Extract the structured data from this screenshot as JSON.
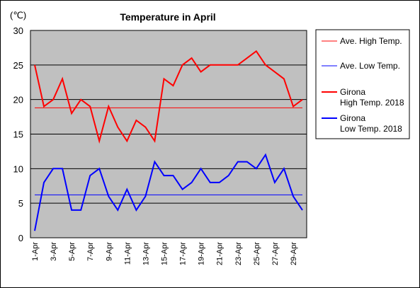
{
  "chart_data": {
    "type": "line",
    "title": "Temperature in April",
    "unit_label": "(℃)",
    "x": [
      "1-Apr",
      "2-Apr",
      "3-Apr",
      "4-Apr",
      "5-Apr",
      "6-Apr",
      "7-Apr",
      "8-Apr",
      "9-Apr",
      "10-Apr",
      "11-Apr",
      "12-Apr",
      "13-Apr",
      "14-Apr",
      "15-Apr",
      "16-Apr",
      "17-Apr",
      "18-Apr",
      "19-Apr",
      "20-Apr",
      "21-Apr",
      "22-Apr",
      "23-Apr",
      "24-Apr",
      "25-Apr",
      "26-Apr",
      "27-Apr",
      "28-Apr",
      "29-Apr",
      "30-Apr"
    ],
    "x_tick_labels": [
      "1-Apr",
      "3-Apr",
      "5-Apr",
      "7-Apr",
      "9-Apr",
      "11-Apr",
      "13-Apr",
      "15-Apr",
      "17-Apr",
      "19-Apr",
      "21-Apr",
      "23-Apr",
      "25-Apr",
      "27-Apr",
      "29-Apr"
    ],
    "ylim": [
      0,
      30
    ],
    "y_ticks": [
      0,
      5,
      10,
      15,
      20,
      25,
      30
    ],
    "grid": "horizontal",
    "legend_position": "right",
    "plot_background": "#c0c0c0",
    "series": [
      {
        "name": "Ave. High Temp.",
        "color": "#ff0000",
        "width": 1,
        "values": [
          18.8,
          18.8,
          18.8,
          18.8,
          18.8,
          18.8,
          18.8,
          18.8,
          18.8,
          18.8,
          18.8,
          18.8,
          18.8,
          18.8,
          18.8,
          18.8,
          18.8,
          18.8,
          18.8,
          18.8,
          18.8,
          18.8,
          18.8,
          18.8,
          18.8,
          18.8,
          18.8,
          18.8,
          18.8,
          18.8
        ]
      },
      {
        "name": "Ave. Low Temp.",
        "color": "#0000ff",
        "width": 1,
        "values": [
          6.2,
          6.2,
          6.2,
          6.2,
          6.2,
          6.2,
          6.2,
          6.2,
          6.2,
          6.2,
          6.2,
          6.2,
          6.2,
          6.2,
          6.2,
          6.2,
          6.2,
          6.2,
          6.2,
          6.2,
          6.2,
          6.2,
          6.2,
          6.2,
          6.2,
          6.2,
          6.2,
          6.2,
          6.2,
          6.2
        ]
      },
      {
        "name": "Girona\nHigh Temp. 2018",
        "legend_lines": [
          "Girona",
          "High Temp. 2018"
        ],
        "color": "#ff0000",
        "width": 2,
        "values": [
          25,
          19,
          20,
          23,
          18,
          20,
          19,
          14,
          19,
          16,
          14,
          17,
          16,
          14,
          23,
          22,
          25,
          26,
          24,
          25,
          25,
          25,
          25,
          26,
          27,
          25,
          24,
          23,
          19,
          20
        ]
      },
      {
        "name": "Girona\nLow Temp. 2018",
        "legend_lines": [
          "Girona",
          "Low Temp. 2018"
        ],
        "color": "#0000ff",
        "width": 2,
        "values": [
          1,
          8,
          10,
          10,
          4,
          4,
          9,
          10,
          6,
          4,
          7,
          4,
          6,
          11,
          9,
          9,
          7,
          8,
          10,
          8,
          8,
          9,
          11,
          11,
          10,
          12,
          8,
          10,
          6,
          4
        ]
      }
    ]
  }
}
